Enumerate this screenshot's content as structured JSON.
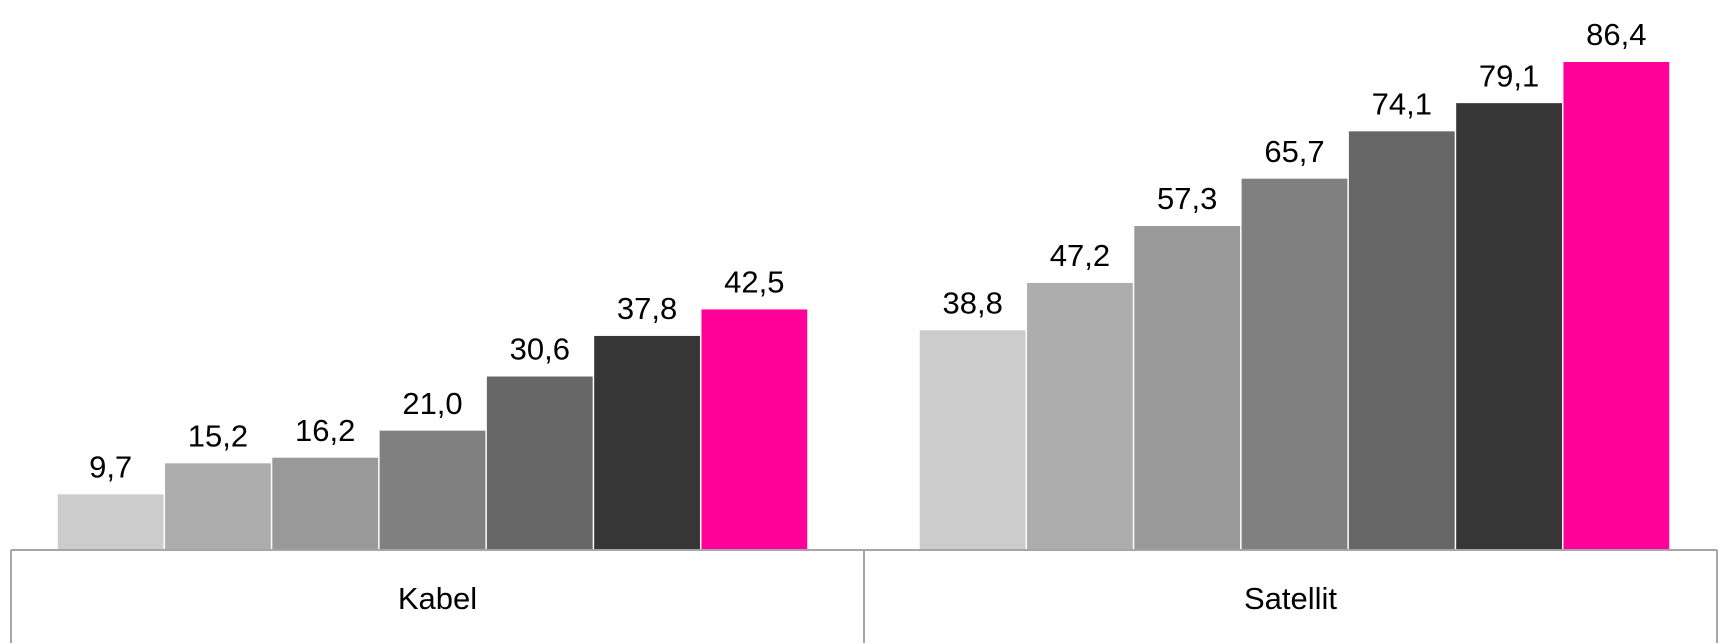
{
  "chart_data": {
    "type": "bar",
    "categories": [
      "Kabel",
      "Satellit"
    ],
    "series": [
      {
        "color": "#cccccc",
        "values": [
          9.7,
          38.8
        ],
        "value_labels": [
          "9,7",
          "38,8"
        ]
      },
      {
        "color": "#adadad",
        "values": [
          15.2,
          47.2
        ],
        "value_labels": [
          "15,2",
          "47,2"
        ]
      },
      {
        "color": "#999999",
        "values": [
          16.2,
          57.3
        ],
        "value_labels": [
          "16,2",
          "57,3"
        ]
      },
      {
        "color": "#808080",
        "values": [
          21.0,
          65.7
        ],
        "value_labels": [
          "21,0",
          "65,7"
        ]
      },
      {
        "color": "#666666",
        "values": [
          30.6,
          74.1
        ],
        "value_labels": [
          "30,6",
          "74,1"
        ]
      },
      {
        "color": "#363636",
        "values": [
          37.8,
          79.1
        ],
        "value_labels": [
          "37,8",
          "79,1"
        ]
      },
      {
        "color": "#ff0099",
        "values": [
          42.5,
          86.4
        ],
        "value_labels": [
          "42,5",
          "86,4"
        ]
      }
    ]
  }
}
